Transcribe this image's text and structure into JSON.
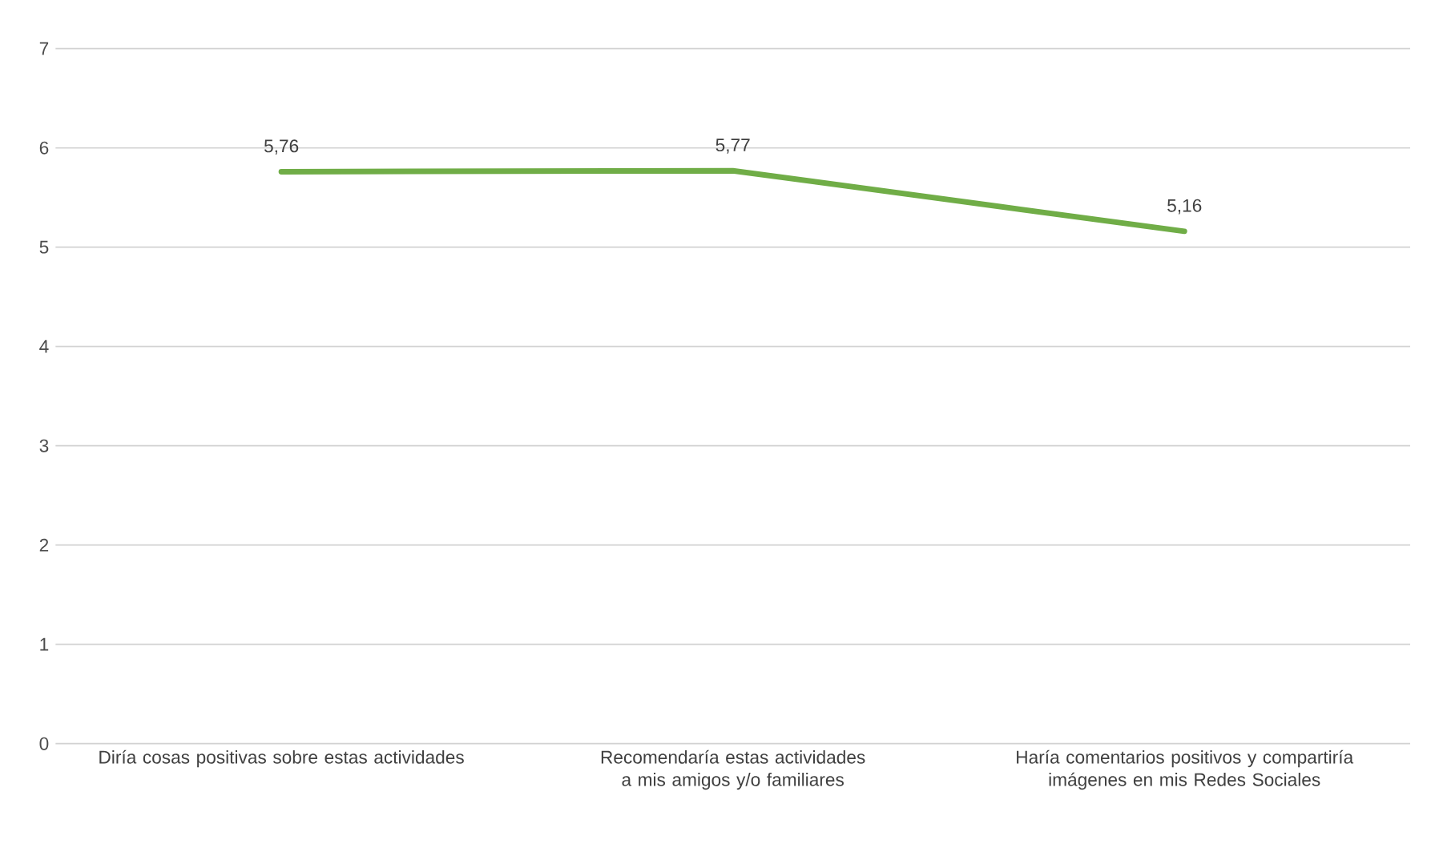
{
  "chart_data": {
    "type": "line",
    "categories": [
      "Diría cosas positivas sobre estas actividades",
      "Recomendaría estas actividades a mis amigos y/o familiares",
      "Haría comentarios positivos y compartiría imágenes en mis Redes Sociales"
    ],
    "values": [
      5.76,
      5.77,
      5.16
    ],
    "value_labels": [
      "5,76",
      "5,77",
      "5,16"
    ],
    "color": "#70ad47",
    "ylim": [
      0,
      7
    ],
    "yticks": [
      0,
      1,
      2,
      3,
      4,
      5,
      6,
      7
    ],
    "grid": "y"
  }
}
